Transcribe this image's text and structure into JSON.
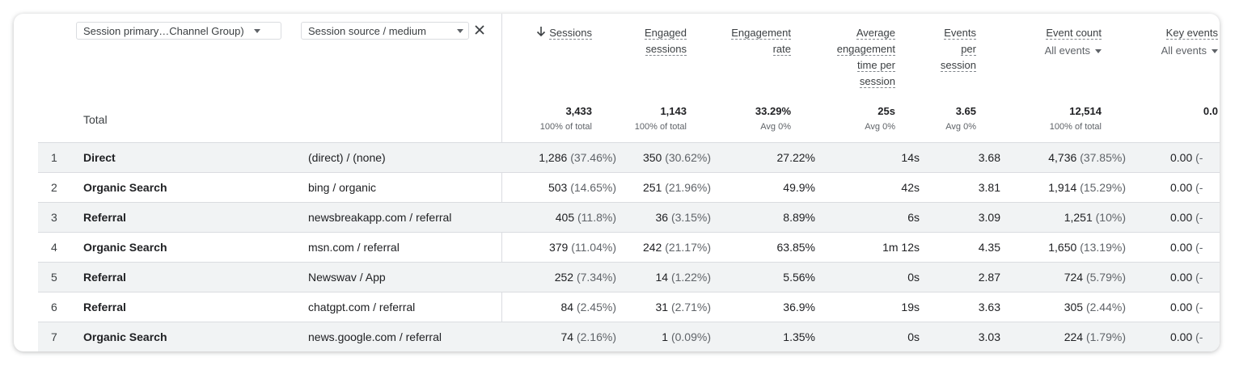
{
  "dimensions": {
    "primary": "Session primary…Channel Group)",
    "secondary": "Session source / medium"
  },
  "headers": {
    "sessions": "Sessions",
    "engaged_sessions": [
      "Engaged",
      "sessions"
    ],
    "engagement_rate": [
      "Engagement",
      "rate"
    ],
    "avg_engagement": [
      "Average",
      "engagement",
      "time per",
      "session"
    ],
    "events_per_session": [
      "Events",
      "per",
      "session"
    ],
    "event_count": "Event count",
    "event_count_filter": "All events",
    "key_events": "Key events",
    "key_events_filter": "All events"
  },
  "total": {
    "label": "Total",
    "sessions": "3,433",
    "sessions_sub": "100% of total",
    "engaged": "1,143",
    "engaged_sub": "100% of total",
    "rate": "33.29%",
    "rate_sub": "Avg 0%",
    "avg_time": "25s",
    "avg_time_sub": "Avg 0%",
    "eps": "3.65",
    "eps_sub": "Avg 0%",
    "events": "12,514",
    "events_sub": "100% of total",
    "key": "0.0"
  },
  "rows": [
    {
      "idx": "1",
      "channel": "Direct",
      "source": "(direct) / (none)",
      "sessions": "1,286",
      "sessions_pct": "(37.46%)",
      "engaged": "350",
      "engaged_pct": "(30.62%)",
      "rate": "27.22%",
      "avg_time": "14s",
      "eps": "3.68",
      "events": "4,736",
      "events_pct": "(37.85%)",
      "key": "0.00",
      "key_pct": "(-"
    },
    {
      "idx": "2",
      "channel": "Organic Search",
      "source": "bing / organic",
      "sessions": "503",
      "sessions_pct": "(14.65%)",
      "engaged": "251",
      "engaged_pct": "(21.96%)",
      "rate": "49.9%",
      "avg_time": "42s",
      "eps": "3.81",
      "events": "1,914",
      "events_pct": "(15.29%)",
      "key": "0.00",
      "key_pct": "(-"
    },
    {
      "idx": "3",
      "channel": "Referral",
      "source": "newsbreakapp.com / referral",
      "sessions": "405",
      "sessions_pct": "(11.8%)",
      "engaged": "36",
      "engaged_pct": "(3.15%)",
      "rate": "8.89%",
      "avg_time": "6s",
      "eps": "3.09",
      "events": "1,251",
      "events_pct": "(10%)",
      "key": "0.00",
      "key_pct": "(-"
    },
    {
      "idx": "4",
      "channel": "Organic Search",
      "source": "msn.com / referral",
      "sessions": "379",
      "sessions_pct": "(11.04%)",
      "engaged": "242",
      "engaged_pct": "(21.17%)",
      "rate": "63.85%",
      "avg_time": "1m 12s",
      "eps": "4.35",
      "events": "1,650",
      "events_pct": "(13.19%)",
      "key": "0.00",
      "key_pct": "(-"
    },
    {
      "idx": "5",
      "channel": "Referral",
      "source": "Newswav / App",
      "sessions": "252",
      "sessions_pct": "(7.34%)",
      "engaged": "14",
      "engaged_pct": "(1.22%)",
      "rate": "5.56%",
      "avg_time": "0s",
      "eps": "2.87",
      "events": "724",
      "events_pct": "(5.79%)",
      "key": "0.00",
      "key_pct": "(-"
    },
    {
      "idx": "6",
      "channel": "Referral",
      "source": "chatgpt.com / referral",
      "sessions": "84",
      "sessions_pct": "(2.45%)",
      "engaged": "31",
      "engaged_pct": "(2.71%)",
      "rate": "36.9%",
      "avg_time": "19s",
      "eps": "3.63",
      "events": "305",
      "events_pct": "(2.44%)",
      "key": "0.00",
      "key_pct": "(-"
    },
    {
      "idx": "7",
      "channel": "Organic Search",
      "source": "news.google.com / referral",
      "sessions": "74",
      "sessions_pct": "(2.16%)",
      "engaged": "1",
      "engaged_pct": "(0.09%)",
      "rate": "1.35%",
      "avg_time": "0s",
      "eps": "3.03",
      "events": "224",
      "events_pct": "(1.79%)",
      "key": "0.00",
      "key_pct": "(-"
    }
  ],
  "colors": {
    "row_shade": "#f1f3f4",
    "border": "#dadce0",
    "muted": "#5f6368"
  },
  "icons": {
    "sort": "arrow-down-icon",
    "remove": "close-icon",
    "dropdown": "caret-down-icon"
  }
}
